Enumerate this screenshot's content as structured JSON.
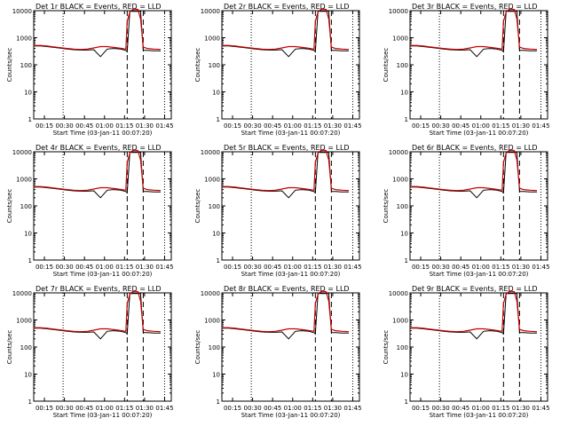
{
  "chart_data": {
    "type": "line",
    "layout": "3x3 grid",
    "shared": {
      "xlabel": "Start Time (03-Jan-11 00:07:20)",
      "ylabel": "Counts/sec",
      "x_tick_labels": [
        "00:15",
        "00:30",
        "00:45",
        "01:00",
        "01:15",
        "01:30",
        "01:45"
      ],
      "x_ticks_min": [
        8,
        23,
        38,
        53,
        68,
        83,
        98
      ],
      "xlim_min": [
        0,
        103
      ],
      "y_scale": "log",
      "ylim": [
        1,
        10000
      ],
      "y_tick_labels": [
        "1",
        "10",
        "100",
        "1000",
        "10000"
      ],
      "y_tick_values": [
        1,
        10,
        100,
        1000,
        10000
      ],
      "dotted_vlines_min": [
        22,
        98
      ],
      "dashed_vlines_min": [
        70,
        82
      ],
      "series_colors": {
        "events": "#000000",
        "lld": "#cc0000"
      },
      "series_x_min": [
        0,
        5,
        10,
        15,
        20,
        25,
        30,
        35,
        40,
        45,
        50,
        55,
        60,
        65,
        69,
        70,
        72,
        74,
        76,
        78,
        80,
        82,
        85,
        90,
        95
      ],
      "events_y": [
        500,
        500,
        470,
        440,
        410,
        380,
        360,
        350,
        350,
        360,
        200,
        380,
        400,
        380,
        340,
        300,
        9500,
        9500,
        9500,
        9500,
        9500,
        340,
        340,
        330,
        330
      ],
      "lld_y": [
        520,
        520,
        490,
        460,
        430,
        400,
        380,
        370,
        380,
        420,
        470,
        470,
        440,
        410,
        380,
        4000,
        9000,
        11000,
        11500,
        11000,
        5000,
        450,
        400,
        380,
        370
      ]
    },
    "panels": [
      {
        "title": "Det 1r  BLACK = Events, RED = LLD"
      },
      {
        "title": "Det 2r  BLACK = Events, RED = LLD"
      },
      {
        "title": "Det 3r  BLACK = Events, RED = LLD"
      },
      {
        "title": "Det 4r  BLACK = Events, RED = LLD"
      },
      {
        "title": "Det 5r  BLACK = Events, RED = LLD"
      },
      {
        "title": "Det 6r  BLACK = Events, RED = LLD"
      },
      {
        "title": "Det 7r  BLACK = Events, RED = LLD"
      },
      {
        "title": "Det 8r  BLACK = Events, RED = LLD"
      },
      {
        "title": "Det 9r  BLACK = Events, RED = LLD"
      }
    ]
  }
}
